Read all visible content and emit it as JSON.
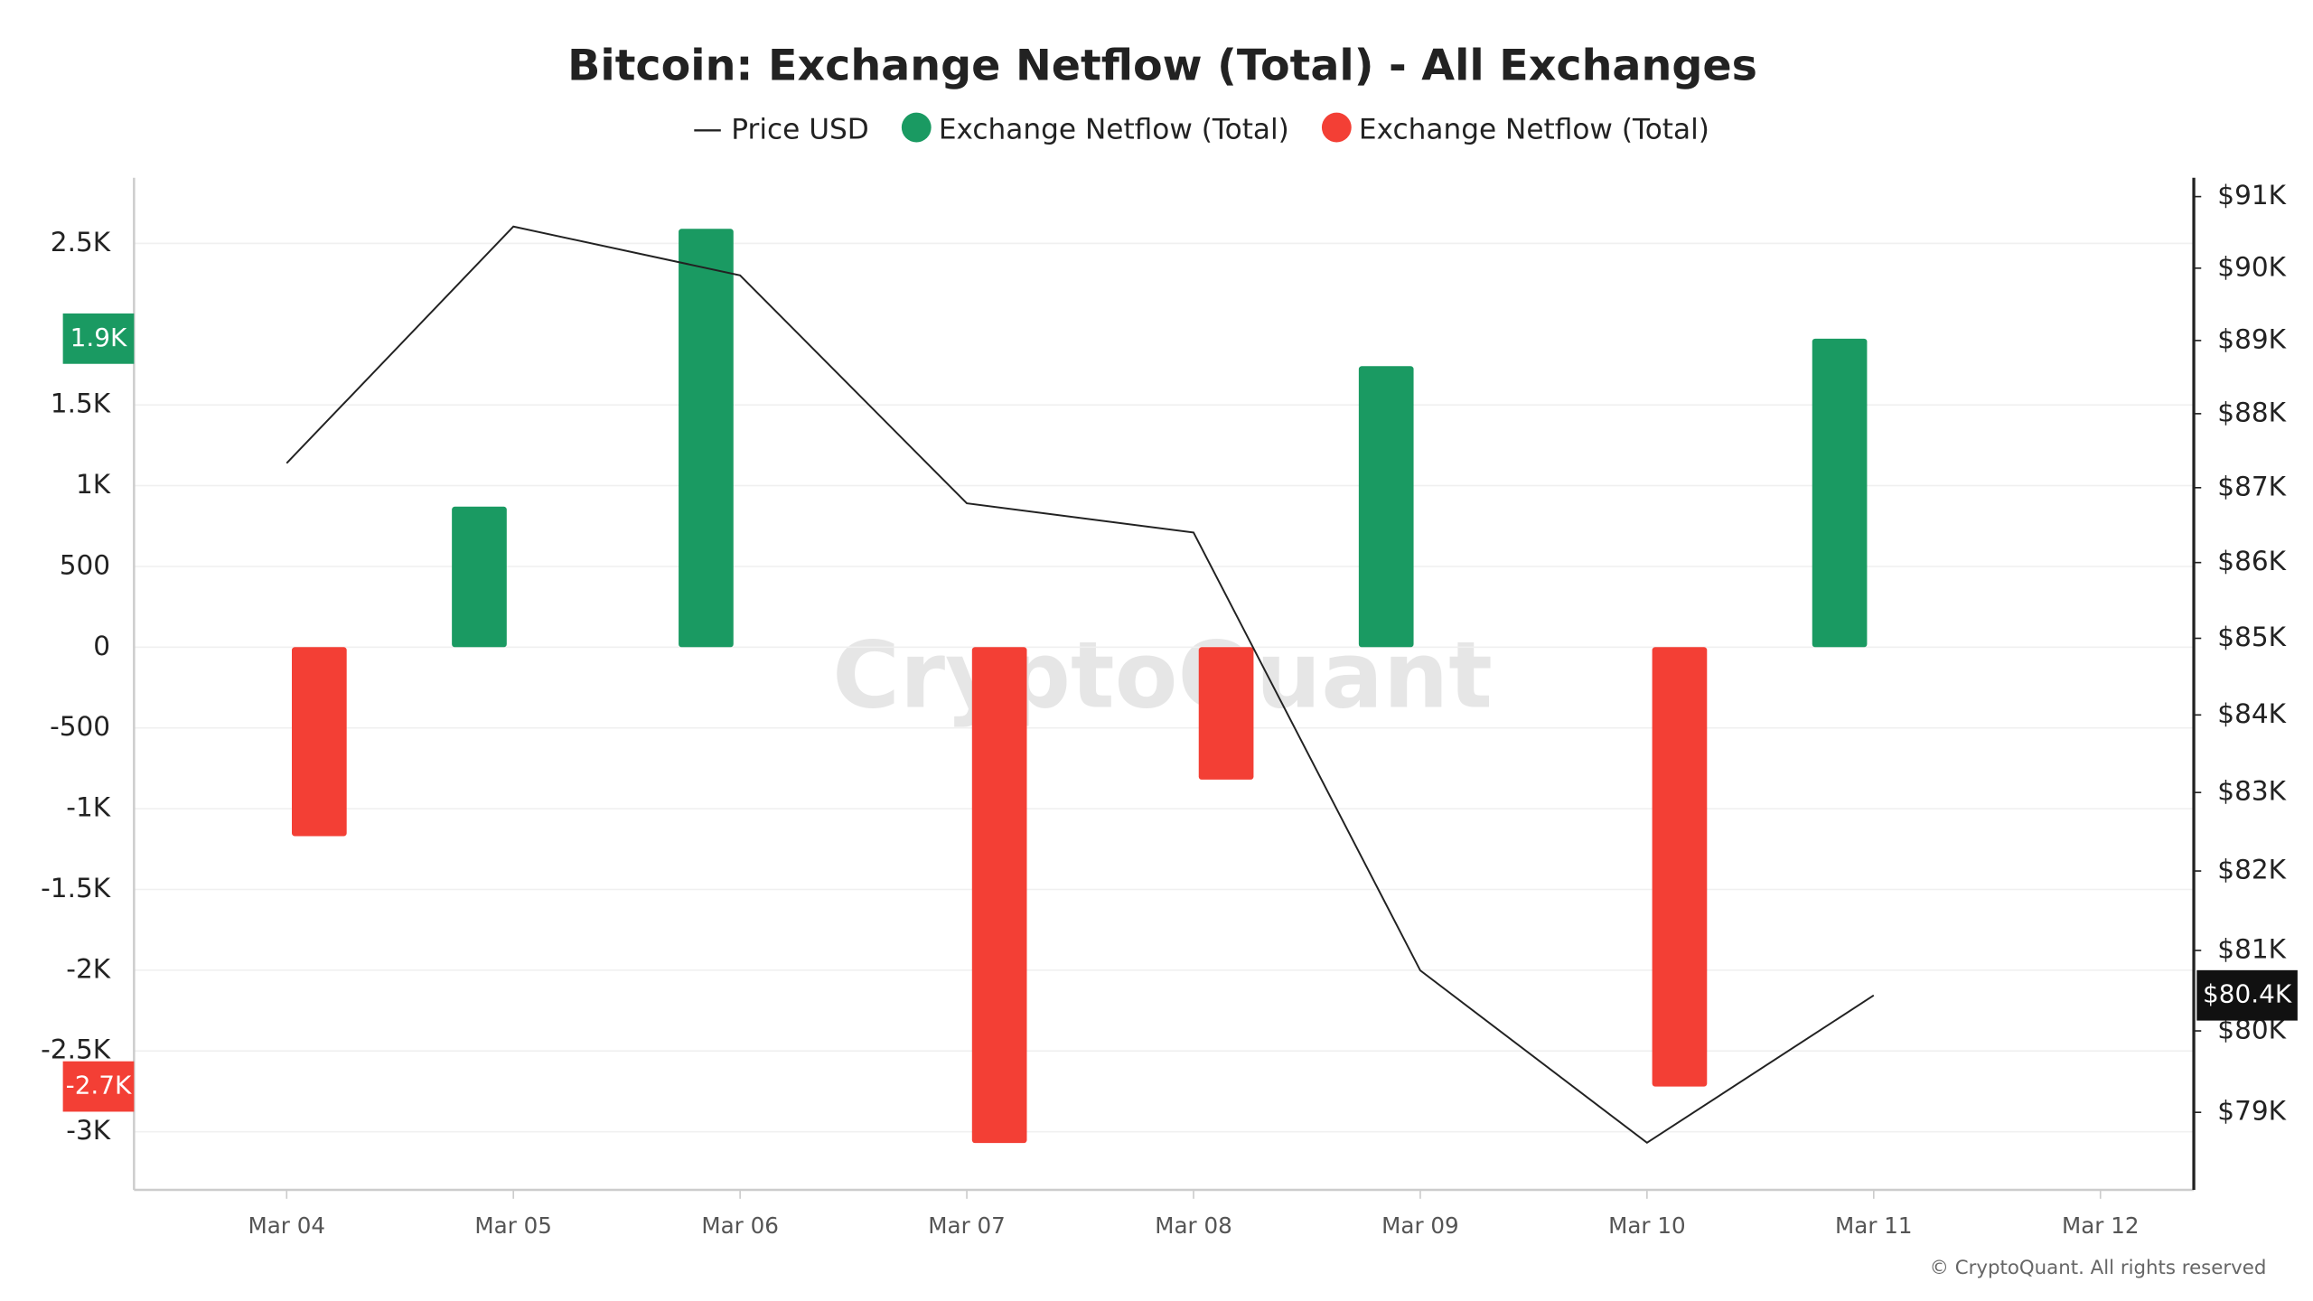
{
  "chart_data": {
    "type": "bar-line",
    "title": "Bitcoin: Exchange Netflow (Total) - All Exchanges",
    "watermark": "CryptoQuant",
    "credit": "© CryptoQuant. All rights reserved",
    "categories": [
      "Mar 04",
      "Mar 05",
      "Mar 06",
      "Mar 07",
      "Mar 08",
      "Mar 09",
      "Mar 10",
      "Mar 11",
      "Mar 12"
    ],
    "series": [
      {
        "name": "Price USD",
        "type": "line",
        "axis": "y2",
        "color": "#222222",
        "values": [
          87330,
          90580,
          89900,
          86790,
          86400,
          80750,
          78630,
          80440,
          null
        ],
        "value_labels": [
          null,
          null,
          null,
          null,
          null,
          null,
          null,
          "$80.4K",
          null
        ]
      },
      {
        "name": "Exchange Netflow (Total)",
        "type": "bar",
        "color": "#1a9a62",
        "values": [
          null,
          870,
          2590,
          null,
          null,
          1740,
          null,
          1910,
          null
        ],
        "value_labels": [
          null,
          null,
          null,
          null,
          null,
          null,
          null,
          "1.9K",
          null
        ]
      },
      {
        "name": "Exchange Netflow (Total)",
        "type": "bar",
        "color": "#f33f35",
        "values": [
          -1170,
          null,
          null,
          -3070,
          -820,
          null,
          -2720,
          null,
          null
        ],
        "value_labels": [
          null,
          null,
          null,
          null,
          null,
          null,
          "-2.7K",
          null,
          null
        ]
      }
    ],
    "ylim": [
      -3360,
      2860
    ],
    "yticks": [
      {
        "value": 2500,
        "label": "2.5K"
      },
      {
        "value": 1500,
        "label": "1.5K"
      },
      {
        "value": 1000,
        "label": "1K"
      },
      500,
      0,
      -500,
      {
        "value": -1000,
        "label": "-1K"
      },
      {
        "value": -1500,
        "label": "-1.5K"
      },
      {
        "value": -2000,
        "label": "-2K"
      },
      {
        "value": -2500,
        "label": "-2.5K"
      },
      {
        "value": -3000,
        "label": "-3K"
      }
    ],
    "y2lim": [
      78060,
      91160
    ],
    "y2_log": true,
    "y2ticks": [
      {
        "value": 91000,
        "label": "$91K"
      },
      {
        "value": 90000,
        "label": "$90K"
      },
      {
        "value": 89000,
        "label": "$89K"
      },
      {
        "value": 88000,
        "label": "$88K"
      },
      {
        "value": 87000,
        "label": "$87K"
      },
      {
        "value": 86000,
        "label": "$86K"
      },
      {
        "value": 85000,
        "label": "$85K"
      },
      {
        "value": 84000,
        "label": "$84K"
      },
      {
        "value": 83000,
        "label": "$83K"
      },
      {
        "value": 82000,
        "label": "$82K"
      },
      {
        "value": 81000,
        "label": "$81K"
      },
      {
        "value": 80000,
        "label": "$80K"
      },
      {
        "value": 79000,
        "label": "$79K"
      }
    ],
    "grid": true,
    "legend": "top"
  }
}
